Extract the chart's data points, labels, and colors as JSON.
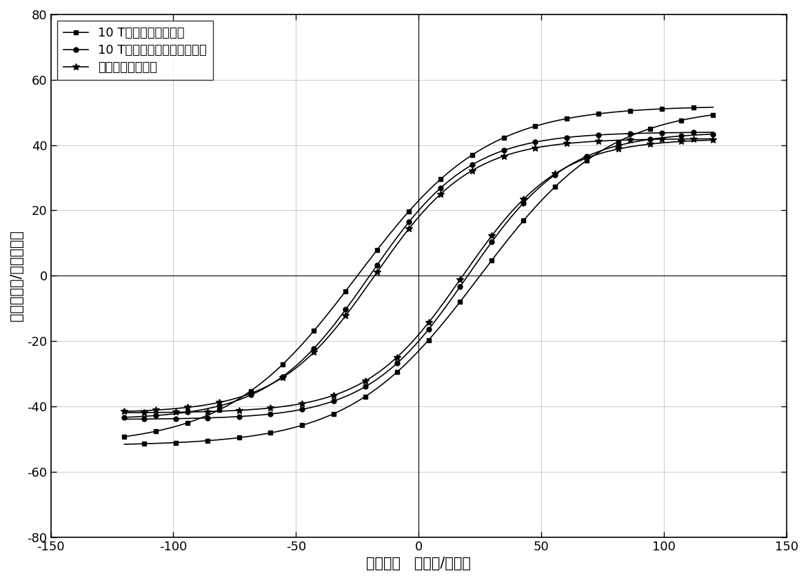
{
  "xlabel": "电场强度   （千伏/厘米）",
  "ylabel": "极化（微库/平方厘米）",
  "xlim": [
    -150,
    150
  ],
  "ylim": [
    -80,
    80
  ],
  "xticks": [
    -150,
    -100,
    -50,
    0,
    50,
    100,
    150
  ],
  "yticks": [
    -80,
    -60,
    -40,
    -20,
    0,
    20,
    40,
    60,
    80
  ],
  "legend_labels": [
    "10 T磁场下锻烧和烧结",
    "10 T磁场下锻烧，无磁场烧结",
    "无磁场锻烧和烧结"
  ],
  "markers": [
    "s",
    "o",
    "*"
  ],
  "background_color": "white",
  "curves": [
    {
      "Ps": 52,
      "Pr": 23,
      "Ec": 25,
      "E_max": 120,
      "Ps_neg": -50
    },
    {
      "Ps": 44,
      "Pr": 20,
      "Ec": 20,
      "E_max": 120,
      "Ps_neg": -42
    },
    {
      "Ps": 42,
      "Pr": 18,
      "Ec": 18,
      "E_max": 120,
      "Ps_neg": -40
    }
  ]
}
